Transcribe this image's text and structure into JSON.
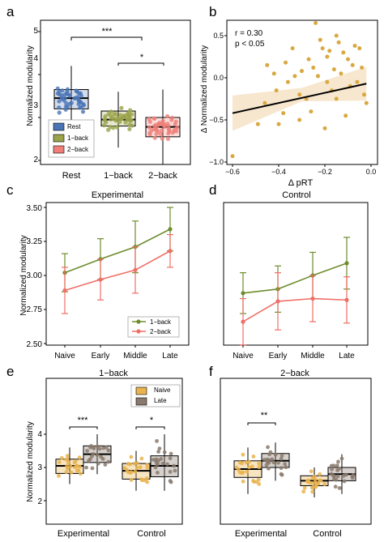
{
  "colors": {
    "rest": "#4a74b5",
    "oneback": "#9aa24a",
    "twoback": "#ef7f78",
    "oneback_line": "#6f8d2e",
    "twoback_line": "#ef6f66",
    "scatter": "#d9a840",
    "ribbon": "#f6e3c7",
    "naive": "#e9b34e",
    "late": "#8a7a6d"
  },
  "panels": {
    "a": {
      "letter": "a",
      "ylabel": "Normalized modularity",
      "yticks": [
        "2",
        "3",
        "4",
        "5"
      ],
      "categories": [
        "Rest",
        "1−back",
        "2−back"
      ],
      "legend": [
        "Rest",
        "1−back",
        "2−back"
      ],
      "sig": [
        "***",
        "*"
      ]
    },
    "b": {
      "letter": "b",
      "ylabel": "Δ Normalized modularity",
      "xlabel": "Δ pRT",
      "stat_r": "r = 0.30",
      "stat_p": "p < 0.05",
      "yticks": [
        "−1.0",
        "−0.5",
        "0.0",
        "0.5"
      ],
      "xticks": [
        "−0.6",
        "−0.4",
        "−0.2",
        "0.0"
      ]
    },
    "c": {
      "letter": "c",
      "title": "Experimental",
      "ylabel": "Normalized modularity",
      "yticks": [
        "2.50",
        "2.75",
        "3.00",
        "3.25",
        "3.50"
      ],
      "xticks": [
        "Naive",
        "Early",
        "Middle",
        "Late"
      ],
      "legend": [
        "1−back",
        "2−back"
      ]
    },
    "d": {
      "letter": "d",
      "title": "Control",
      "xticks": [
        "Naive",
        "Early",
        "Middle",
        "Late"
      ]
    },
    "e": {
      "letter": "e",
      "title": "1−back",
      "ylabel": "Normalized modularity",
      "yticks": [
        "2",
        "3",
        "4"
      ],
      "xticks": [
        "Experimental",
        "Control"
      ],
      "legend": [
        "Naive",
        "Late"
      ],
      "sig": [
        "***",
        "*"
      ]
    },
    "f": {
      "letter": "f",
      "title": "2−back",
      "xticks": [
        "Experimental",
        "Control"
      ],
      "sig": [
        "**"
      ]
    }
  },
  "chart_data": [
    {
      "panel": "a",
      "type": "box",
      "categories": [
        "Rest",
        "1−back",
        "2−back"
      ],
      "ylim": [
        1.75,
        5.2
      ],
      "boxes": [
        {
          "whisker_low": 2.75,
          "q1": 3.2,
          "median": 3.45,
          "q3": 3.65,
          "whisker_high": 4.2
        },
        {
          "whisker_low": 2.3,
          "q1": 2.8,
          "median": 2.95,
          "q3": 3.15,
          "whisker_high": 3.6
        },
        {
          "whisker_low": 1.9,
          "q1": 2.55,
          "median": 2.78,
          "q3": 3.0,
          "whisker_high": 3.65
        }
      ],
      "points_per_group": 45,
      "significance": [
        {
          "between": [
            "Rest",
            "2−back"
          ],
          "label": "***"
        },
        {
          "between": [
            "1−back",
            "2−back"
          ],
          "label": "*"
        }
      ]
    },
    {
      "panel": "b",
      "type": "scatter",
      "xlabel": "Δ pRT",
      "ylabel": "Δ Normalized modularity",
      "xlim": [
        -0.62,
        0.02
      ],
      "ylim": [
        -1.02,
        0.72
      ],
      "points": [
        [
          -0.6,
          -0.93
        ],
        [
          -0.49,
          -0.55
        ],
        [
          -0.46,
          -0.3
        ],
        [
          -0.45,
          0.15
        ],
        [
          -0.42,
          0.05
        ],
        [
          -0.4,
          -0.55
        ],
        [
          -0.38,
          -0.42
        ],
        [
          -0.37,
          0.18
        ],
        [
          -0.36,
          -0.05
        ],
        [
          -0.34,
          0.35
        ],
        [
          -0.33,
          0.02
        ],
        [
          -0.31,
          -0.2
        ],
        [
          -0.3,
          0.08
        ],
        [
          -0.28,
          -0.25
        ],
        [
          -0.27,
          0.22
        ],
        [
          -0.25,
          0.12
        ],
        [
          -0.24,
          0.65
        ],
        [
          -0.23,
          0.02
        ],
        [
          -0.22,
          0.45
        ],
        [
          -0.21,
          0.35
        ],
        [
          -0.2,
          -0.6
        ],
        [
          -0.19,
          0.25
        ],
        [
          -0.18,
          0.32
        ],
        [
          -0.17,
          -0.15
        ],
        [
          -0.16,
          0.1
        ],
        [
          -0.15,
          -0.25
        ],
        [
          -0.14,
          0.42
        ],
        [
          -0.13,
          0.05
        ],
        [
          -0.12,
          0.3
        ],
        [
          -0.11,
          -0.45
        ],
        [
          -0.1,
          0.22
        ],
        [
          -0.09,
          -0.1
        ],
        [
          -0.08,
          0.15
        ],
        [
          -0.07,
          0.38
        ],
        [
          -0.06,
          -0.05
        ],
        [
          -0.05,
          0.35
        ],
        [
          -0.04,
          0.12
        ],
        [
          -0.03,
          -0.2
        ],
        [
          -0.02,
          -0.3
        ],
        [
          -0.31,
          -0.5
        ],
        [
          -0.41,
          -0.15
        ],
        [
          -0.15,
          0.5
        ],
        [
          -0.26,
          -0.4
        ],
        [
          -0.19,
          -0.05
        ]
      ],
      "fit": {
        "x": [
          -0.6,
          -0.02
        ],
        "y": [
          -0.42,
          -0.07
        ]
      },
      "ribbon": {
        "x": [
          -0.6,
          -0.3,
          -0.02
        ],
        "lower": [
          -0.63,
          -0.28,
          -0.27
        ],
        "upper": [
          -0.21,
          -0.12,
          0.13
        ]
      }
    },
    {
      "panel": "c",
      "type": "line",
      "title": "Experimental",
      "x": [
        "Naive",
        "Early",
        "Middle",
        "Late"
      ],
      "ylim": [
        2.49,
        3.53
      ],
      "series": [
        {
          "name": "1−back",
          "values": [
            3.02,
            3.12,
            3.21,
            3.34
          ],
          "err": [
            0.14,
            0.15,
            0.19,
            0.16
          ]
        },
        {
          "name": "2−back",
          "values": [
            2.89,
            2.97,
            3.04,
            3.18
          ],
          "err": [
            0.17,
            0.15,
            0.17,
            0.12
          ]
        }
      ]
    },
    {
      "panel": "d",
      "type": "line",
      "title": "Control",
      "x": [
        "Naive",
        "Early",
        "Middle",
        "Late"
      ],
      "ylim": [
        2.49,
        3.53
      ],
      "series": [
        {
          "name": "1−back",
          "values": [
            2.87,
            2.9,
            3.0,
            3.09
          ],
          "err": [
            0.15,
            0.17,
            0.17,
            0.19
          ]
        },
        {
          "name": "2−back",
          "values": [
            2.66,
            2.81,
            2.83,
            2.82
          ],
          "err": [
            0.17,
            0.21,
            0.17,
            0.17
          ]
        }
      ]
    },
    {
      "panel": "e",
      "type": "box",
      "title": "1−back",
      "categories": [
        "Experimental",
        "Control"
      ],
      "ylim": [
        1.8,
        4.6
      ],
      "boxes": [
        {
          "group": "Experimental",
          "series": "Naive",
          "whisker_low": 2.5,
          "q1": 2.82,
          "median": 3.05,
          "q3": 3.25,
          "whisker_high": 3.6
        },
        {
          "group": "Experimental",
          "series": "Late",
          "whisker_low": 2.8,
          "q1": 3.15,
          "median": 3.4,
          "q3": 3.65,
          "whisker_high": 4.0
        },
        {
          "group": "Control",
          "series": "Naive",
          "whisker_low": 2.3,
          "q1": 2.65,
          "median": 2.9,
          "q3": 3.12,
          "whisker_high": 3.5
        },
        {
          "group": "Control",
          "series": "Late",
          "whisker_low": 2.3,
          "q1": 2.72,
          "median": 3.05,
          "q3": 3.35,
          "whisker_high": 4.0
        }
      ],
      "significance": [
        {
          "between": [
            "Naive",
            "Late"
          ],
          "group": "Experimental",
          "label": "***"
        },
        {
          "between": [
            "Naive",
            "Late"
          ],
          "group": "Control",
          "label": "*"
        }
      ]
    },
    {
      "panel": "f",
      "type": "box",
      "title": "2−back",
      "categories": [
        "Experimental",
        "Control"
      ],
      "ylim": [
        1.8,
        4.6
      ],
      "boxes": [
        {
          "group": "Experimental",
          "series": "Naive",
          "whisker_low": 2.2,
          "q1": 2.7,
          "median": 2.95,
          "q3": 3.2,
          "whisker_high": 3.6
        },
        {
          "group": "Experimental",
          "series": "Late",
          "whisker_low": 2.6,
          "q1": 3.0,
          "median": 3.2,
          "q3": 3.42,
          "whisker_high": 3.75
        },
        {
          "group": "Control",
          "series": "Naive",
          "whisker_low": 2.1,
          "q1": 2.45,
          "median": 2.6,
          "q3": 2.75,
          "whisker_high": 3.0
        },
        {
          "group": "Control",
          "series": "Late",
          "whisker_low": 2.2,
          "q1": 2.6,
          "median": 2.8,
          "q3": 3.0,
          "whisker_high": 3.4
        }
      ],
      "significance": [
        {
          "between": [
            "Naive",
            "Late"
          ],
          "group": "Experimental",
          "label": "**"
        }
      ]
    }
  ]
}
